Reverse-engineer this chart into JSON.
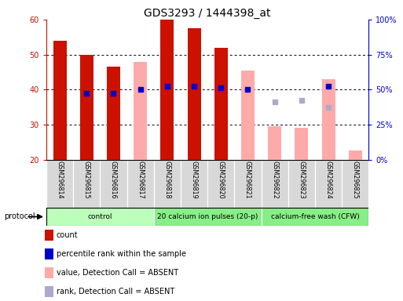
{
  "title": "GDS3293 / 1444398_at",
  "samples": [
    "GSM296814",
    "GSM296815",
    "GSM296816",
    "GSM296817",
    "GSM296818",
    "GSM296819",
    "GSM296820",
    "GSM296821",
    "GSM296822",
    "GSM296823",
    "GSM296824",
    "GSM296825"
  ],
  "red_bars": [
    54,
    50,
    46.5,
    null,
    60,
    57.5,
    52,
    null,
    null,
    null,
    null,
    null
  ],
  "pink_bars": [
    null,
    null,
    null,
    48,
    null,
    null,
    null,
    45.5,
    29.5,
    29,
    43,
    22.5
  ],
  "blue_dots": [
    null,
    39,
    39,
    40,
    41,
    41,
    40.5,
    40,
    null,
    null,
    41,
    null
  ],
  "light_blue_dots": [
    null,
    null,
    null,
    null,
    null,
    null,
    null,
    null,
    36.5,
    37,
    35,
    null
  ],
  "ylim_left": [
    20,
    60
  ],
  "ylim_right": [
    0,
    100
  ],
  "yticks_left": [
    20,
    30,
    40,
    50,
    60
  ],
  "yticks_right": [
    0,
    25,
    50,
    75,
    100
  ],
  "ytick_labels_left": [
    "20",
    "30",
    "40",
    "50",
    "60"
  ],
  "ytick_labels_right": [
    "0%",
    "25%",
    "50%",
    "75%",
    "100%"
  ],
  "red_color": "#cc1100",
  "pink_color": "#ffaaaa",
  "blue_color": "#0000cc",
  "light_blue_color": "#aaaacc",
  "proto_groups": [
    {
      "label": "control",
      "start": 0,
      "end": 4,
      "color": "#bbffbb"
    },
    {
      "label": "20 calcium ion pulses (20-p)",
      "start": 4,
      "end": 8,
      "color": "#88ee88"
    },
    {
      "label": "calcium-free wash (CFW)",
      "start": 8,
      "end": 12,
      "color": "#88ee88"
    }
  ],
  "legend_labels": [
    "count",
    "percentile rank within the sample",
    "value, Detection Call = ABSENT",
    "rank, Detection Call = ABSENT"
  ],
  "legend_colors": [
    "#cc1100",
    "#0000cc",
    "#ffaaaa",
    "#aaaacc"
  ]
}
